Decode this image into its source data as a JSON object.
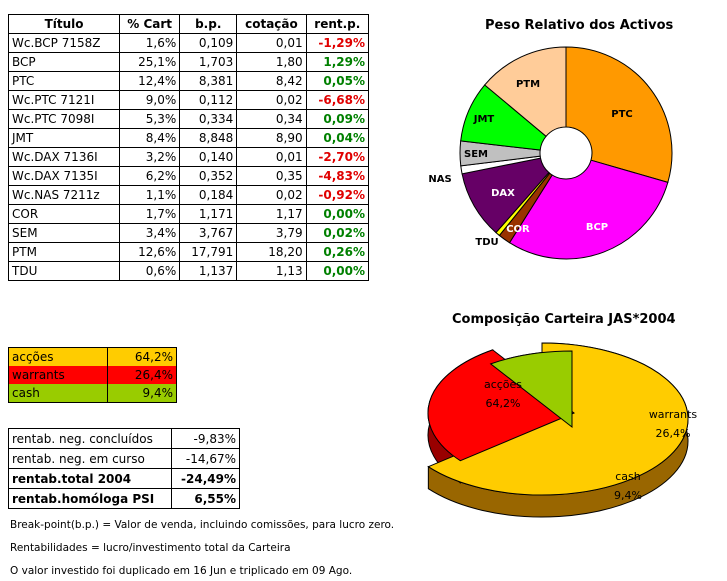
{
  "table": {
    "headers": [
      "Título",
      "% Cart",
      "b.p.",
      "cotação",
      "rent.p."
    ],
    "rows": [
      [
        "Wc.BCP 7158Z",
        "1,6%",
        "0,109",
        "0,01",
        "-1,29%"
      ],
      [
        "BCP",
        "25,1%",
        "1,703",
        "1,80",
        "1,29%"
      ],
      [
        "PTC",
        "12,4%",
        "8,381",
        "8,42",
        "0,05%"
      ],
      [
        "Wc.PTC 7121I",
        "9,0%",
        "0,112",
        "0,02",
        "-6,68%"
      ],
      [
        "Wc.PTC 7098I",
        "5,3%",
        "0,334",
        "0,34",
        "0,09%"
      ],
      [
        "JMT",
        "8,4%",
        "8,848",
        "8,90",
        "0,04%"
      ],
      [
        "Wc.DAX 7136I",
        "3,2%",
        "0,140",
        "0,01",
        "-2,70%"
      ],
      [
        "Wc.DAX 7135I",
        "6,2%",
        "0,352",
        "0,35",
        "-4,83%"
      ],
      [
        "Wc.NAS 7211z",
        "1,1%",
        "0,184",
        "0,02",
        "-0,92%"
      ],
      [
        "COR",
        "1,7%",
        "1,171",
        "1,17",
        "0,00%"
      ],
      [
        "SEM",
        "3,4%",
        "3,767",
        "3,79",
        "0,02%"
      ],
      [
        "PTM",
        "12,6%",
        "17,791",
        "18,20",
        "0,26%"
      ],
      [
        "TDU",
        "0,6%",
        "1,137",
        "1,13",
        "0,00%"
      ]
    ]
  },
  "allocation": [
    {
      "label": "acções",
      "value": "64,2%",
      "color": "#ffcc00"
    },
    {
      "label": "warrants",
      "value": "26,4%",
      "color": "#ff0000"
    },
    {
      "label": "cash",
      "value": "9,4%",
      "color": "#99cc00"
    }
  ],
  "stats": [
    {
      "label": "rentab. neg. concluídos",
      "value": "-9,83%",
      "bold": false
    },
    {
      "label": "rentab. neg. em curso",
      "value": "-14,67%",
      "bold": false
    },
    {
      "label": "rentab.total 2004",
      "value": "-24,49%",
      "bold": true
    },
    {
      "label": "rentab.homóloga PSI",
      "value": "6,55%",
      "bold": true
    }
  ],
  "notes": {
    "note1": "Break-point(b.p.) = Valor de venda, incluindo comissões, para lucro zero.",
    "note2": "Rentabilidades = lucro/investimento total da Carteira",
    "note3": "O valor investido foi duplicado em 16 Jun e triplicado em 09 Ago."
  },
  "chart_data": [
    {
      "type": "pie",
      "title": "Peso Relativo dos Activos",
      "categories": [
        "PTC",
        "BCP",
        "COR",
        "TDU",
        "DAX",
        "NAS",
        "SEM",
        "JMT",
        "PTM"
      ],
      "values": [
        26.7,
        26.7,
        1.7,
        0.6,
        9.4,
        1.1,
        3.4,
        8.4,
        12.6
      ],
      "colors": [
        "#ff9900",
        "#ff00ff",
        "#993300",
        "#ffff00",
        "#660066",
        "#ffffff",
        "#c0c0c0",
        "#00ff00",
        "#ffcc99"
      ],
      "donut": true
    },
    {
      "type": "pie",
      "title": "Composição Carteira JAS*2004",
      "categories": [
        "acções",
        "warrants",
        "cash"
      ],
      "values": [
        64.2,
        26.4,
        9.4
      ],
      "labels": [
        "64,2%",
        "26,4%",
        "9,4%"
      ],
      "colors": [
        "#ffcc00",
        "#ff0000",
        "#99cc00"
      ],
      "style": "3d-exploded"
    }
  ]
}
